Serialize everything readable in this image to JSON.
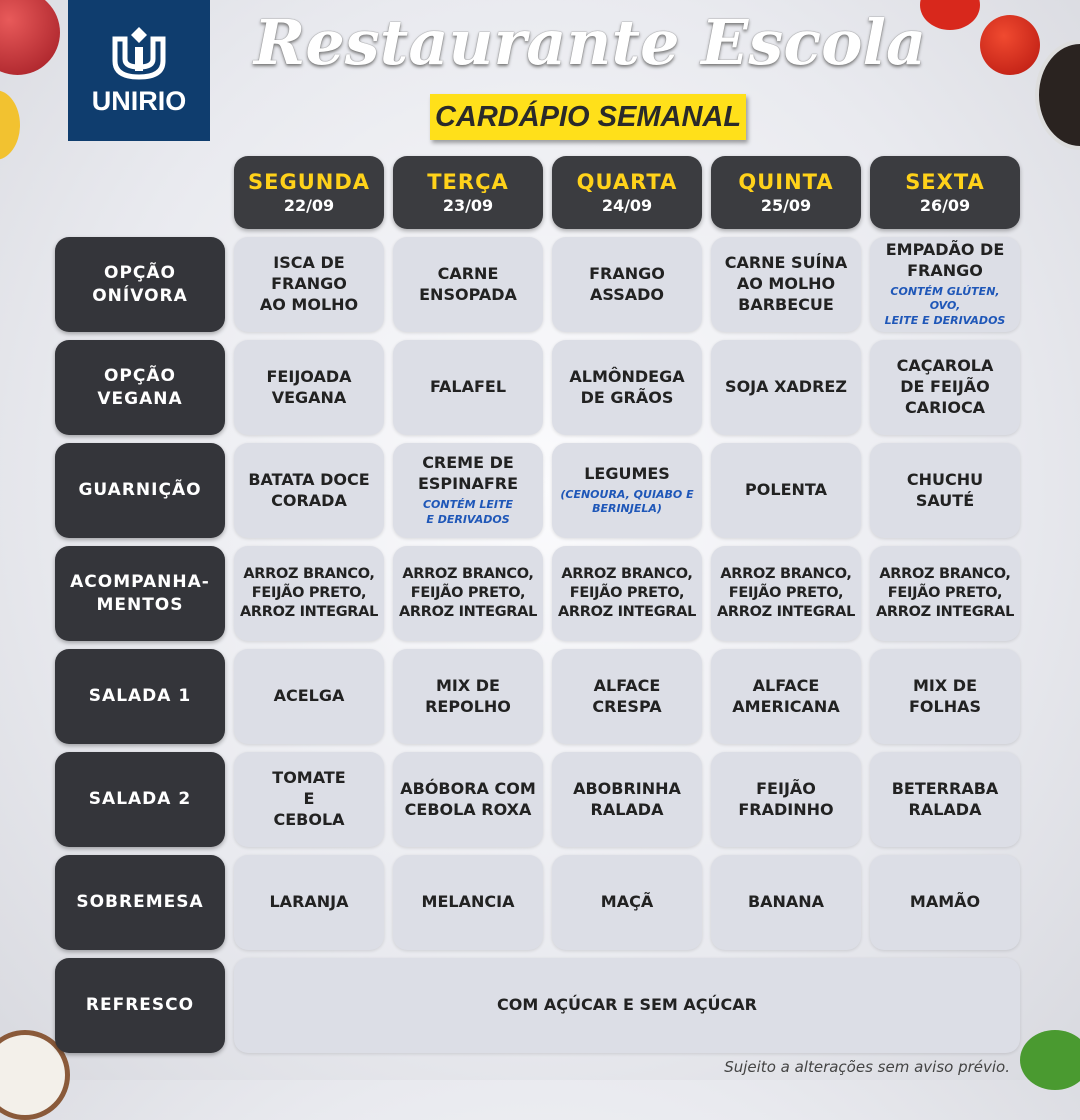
{
  "logo": {
    "text": "UNIRIO"
  },
  "title": "Restaurante Escola",
  "subtitle": "CARDÁPIO SEMANAL",
  "days": [
    {
      "name": "SEGUNDA",
      "date": "22/09"
    },
    {
      "name": "TERÇA",
      "date": "23/09"
    },
    {
      "name": "QUARTA",
      "date": "24/09"
    },
    {
      "name": "QUINTA",
      "date": "25/09"
    },
    {
      "name": "SEXTA",
      "date": "26/09"
    }
  ],
  "rows": [
    {
      "label": "OPÇÃO\nONÍVORA",
      "cells": [
        {
          "text": "ISCA DE\nFRANGO\nAO MOLHO"
        },
        {
          "text": "CARNE\nENSOPADA"
        },
        {
          "text": "FRANGO\nASSADO"
        },
        {
          "text": "CARNE SUÍNA\nAO MOLHO\nBARBECUE"
        },
        {
          "text": "EMPADÃO DE\nFRANGO",
          "note": "CONTÉM GLÚTEN, OVO,\nLEITE E DERIVADOS"
        }
      ]
    },
    {
      "label": "OPÇÃO\nVEGANA",
      "cells": [
        {
          "text": "FEIJOADA\nVEGANA"
        },
        {
          "text": "FALAFEL"
        },
        {
          "text": "ALMÔNDEGA\nDE GRÃOS"
        },
        {
          "text": "SOJA XADREZ"
        },
        {
          "text": "CAÇAROLA\nDE FEIJÃO\nCARIOCA"
        }
      ]
    },
    {
      "label": "GUARNIÇÃO",
      "cells": [
        {
          "text": "BATATA DOCE\nCORADA"
        },
        {
          "text": "CREME DE\nESPINAFRE",
          "note": "CONTÉM LEITE\nE DERIVADOS"
        },
        {
          "text": "LEGUMES",
          "note": "(CENOURA, QUIABO E\nBERINJELA)"
        },
        {
          "text": "POLENTA"
        },
        {
          "text": "CHUCHU\nSAUTÉ"
        }
      ]
    },
    {
      "label": "ACOMPANHA-\nMENTOS",
      "cells": [
        {
          "text": "ARROZ BRANCO,\nFEIJÃO PRETO,\nARROZ INTEGRAL"
        },
        {
          "text": "ARROZ BRANCO,\nFEIJÃO PRETO,\nARROZ INTEGRAL"
        },
        {
          "text": "ARROZ BRANCO,\nFEIJÃO PRETO,\nARROZ INTEGRAL"
        },
        {
          "text": "ARROZ BRANCO,\nFEIJÃO PRETO,\nARROZ INTEGRAL"
        },
        {
          "text": "ARROZ BRANCO,\nFEIJÃO PRETO,\nARROZ INTEGRAL"
        }
      ]
    },
    {
      "label": "SALADA 1",
      "cells": [
        {
          "text": "ACELGA"
        },
        {
          "text": "MIX DE\nREPOLHO"
        },
        {
          "text": "ALFACE\nCRESPA"
        },
        {
          "text": "ALFACE\nAMERICANA"
        },
        {
          "text": "MIX DE\nFOLHAS"
        }
      ]
    },
    {
      "label": "SALADA 2",
      "cells": [
        {
          "text": "TOMATE\nE\nCEBOLA"
        },
        {
          "text": "ABÓBORA COM\nCEBOLA ROXA"
        },
        {
          "text": "ABOBRINHA\nRALADA"
        },
        {
          "text": "FEIJÃO\nFRADINHO"
        },
        {
          "text": "BETERRABA\nRALADA"
        }
      ]
    },
    {
      "label": "SOBREMESA",
      "cells": [
        {
          "text": "LARANJA"
        },
        {
          "text": "MELANCIA"
        },
        {
          "text": "MAÇÃ"
        },
        {
          "text": "BANANA"
        },
        {
          "text": "MAMÃO"
        }
      ]
    },
    {
      "label": "REFRESCO",
      "full": "COM AÇÚCAR E SEM AÇÚCAR"
    }
  ],
  "footer": "Sujeito a alterações sem aviso prévio.",
  "colors": {
    "accent_yellow": "#ffd21a",
    "label_dark": "#34353a",
    "note_blue": "#1f57b8",
    "logo_blue": "#0f3d6e"
  }
}
